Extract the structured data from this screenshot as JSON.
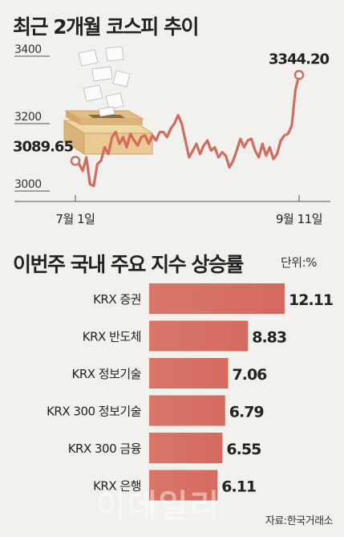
{
  "titles": {
    "line": "최근 2개월 코스피 추이",
    "bar": "이번주 국내 주요 지수 상승률",
    "unit": "단위:%",
    "source": "자료:한국거래소",
    "watermark": "이데일리"
  },
  "chart_data": [
    {
      "type": "line",
      "title": "최근 2개월 코스피 추이",
      "ylim": [
        3000,
        3400
      ],
      "yticks": [
        "3400",
        "3200",
        "3000"
      ],
      "xticks": [
        "7월 1일",
        "9월 11일"
      ],
      "grid": false,
      "color": "#d56b5e",
      "start_label": "3089.65",
      "end_label": "3344.20",
      "values": [
        3089.65,
        3080,
        3060,
        3100,
        3020,
        3015,
        3080,
        3090,
        3130,
        3110,
        3160,
        3175,
        3140,
        3160,
        3130,
        3170,
        3150,
        3135,
        3160,
        3165,
        3140,
        3165,
        3150,
        3175,
        3175,
        3160,
        3185,
        3200,
        3225,
        3200,
        3150,
        3100,
        3120,
        3140,
        3110,
        3135,
        3150,
        3120,
        3130,
        3100,
        3115,
        3105,
        3070,
        3090,
        3120,
        3155,
        3130,
        3150,
        3155,
        3120,
        3100,
        3140,
        3105,
        3130,
        3095,
        3110,
        3150,
        3165,
        3170,
        3195,
        3300,
        3344.2
      ]
    },
    {
      "type": "bar",
      "orientation": "horizontal",
      "title": "이번주 국내 주요 지수 상승률",
      "unit": "단위:%",
      "color": "#d56b5e",
      "categories": [
        "KRX 증권",
        "KRX 반도체",
        "KRX 정보기술",
        "KRX 300 정보기술",
        "KRX 300 금융",
        "KRX 은행"
      ],
      "values": [
        12.11,
        8.83,
        7.06,
        6.79,
        6.55,
        6.11
      ],
      "value_labels": [
        "12.11",
        "8.83",
        "7.06",
        "6.79",
        "6.55",
        "6.11"
      ]
    }
  ]
}
